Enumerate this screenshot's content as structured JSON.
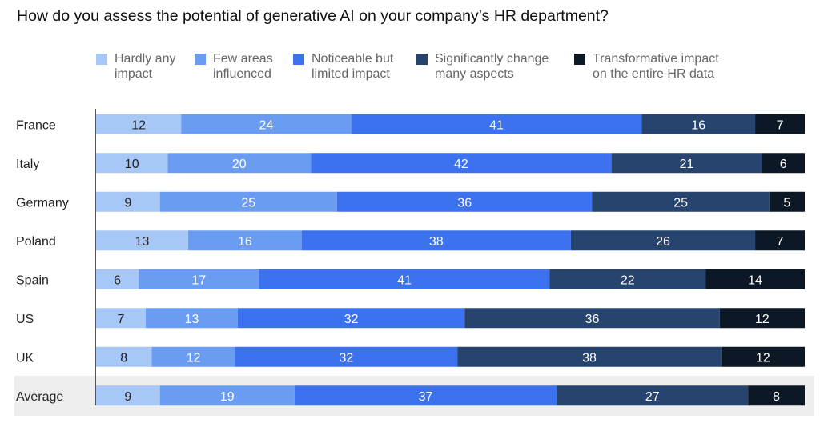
{
  "title": "How do you assess the potential of generative AI on your company’s HR department?",
  "legend": [
    {
      "label": "Hardly any\nimpact",
      "color": "#a7c8f6"
    },
    {
      "label": "Few areas\ninfluenced",
      "color": "#6a9df2"
    },
    {
      "label": "Noticeable but\nlimited impact",
      "color": "#3d72ee"
    },
    {
      "label": "Significantly change\nmany aspects",
      "color": "#26446e"
    },
    {
      "label": "Transformative impact\non the entire HR data",
      "color": "#0c1825"
    }
  ],
  "chart_data": {
    "type": "bar",
    "orientation": "horizontal",
    "stacked": true,
    "title": "How do you assess the potential of generative AI on your company’s HR department?",
    "categories": [
      "France",
      "Italy",
      "Germany",
      "Poland",
      "Spain",
      "US",
      "UK",
      "Average"
    ],
    "series": [
      {
        "name": "Hardly any impact",
        "color": "#a7c8f6",
        "values": [
          12,
          10,
          9,
          13,
          6,
          7,
          8,
          9
        ]
      },
      {
        "name": "Few areas influenced",
        "color": "#6a9df2",
        "values": [
          24,
          20,
          25,
          16,
          17,
          13,
          12,
          19
        ]
      },
      {
        "name": "Noticeable but limited impact",
        "color": "#3d72ee",
        "values": [
          41,
          42,
          36,
          38,
          41,
          32,
          32,
          37
        ]
      },
      {
        "name": "Significantly change many aspects",
        "color": "#26446e",
        "values": [
          16,
          21,
          25,
          26,
          22,
          36,
          38,
          27
        ]
      },
      {
        "name": "Transformative impact on the entire HR data",
        "color": "#0c1825",
        "values": [
          7,
          6,
          5,
          7,
          14,
          12,
          12,
          8
        ]
      }
    ],
    "highlight_category": "Average",
    "highlight_color": "#eeeeee",
    "xlabel": "",
    "ylabel": "",
    "grid": false,
    "legend_position": "top"
  }
}
